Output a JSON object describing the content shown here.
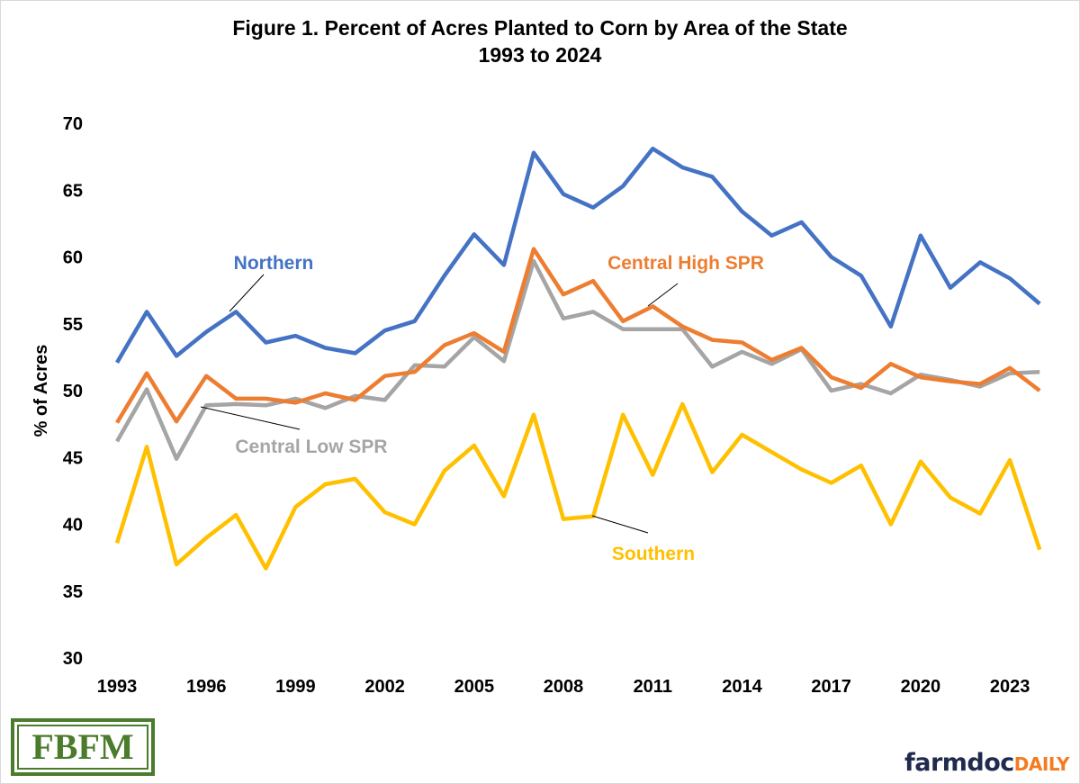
{
  "chart_data": {
    "type": "line",
    "title": "Figure  1. Percent of Acres Planted to Corn by Area of the State",
    "subtitle": "1993 to 2024",
    "xlabel": "",
    "ylabel": "% of Acres",
    "ylim": [
      30,
      70
    ],
    "yticks": [
      30,
      35,
      40,
      45,
      50,
      55,
      60,
      65,
      70
    ],
    "xticks": [
      1993,
      1996,
      1999,
      2002,
      2005,
      2008,
      2011,
      2014,
      2017,
      2020,
      2023
    ],
    "grid": false,
    "x": [
      1993,
      1994,
      1995,
      1996,
      1997,
      1998,
      1999,
      2000,
      2001,
      2002,
      2003,
      2004,
      2005,
      2006,
      2007,
      2008,
      2009,
      2010,
      2011,
      2012,
      2013,
      2014,
      2015,
      2016,
      2017,
      2018,
      2019,
      2020,
      2021,
      2022,
      2023,
      2024
    ],
    "series": [
      {
        "name": "Northern",
        "color": "#4472c4",
        "values": [
          52.1,
          55.9,
          52.6,
          54.4,
          55.9,
          53.6,
          54.1,
          53.2,
          52.8,
          54.5,
          55.2,
          58.6,
          61.7,
          59.4,
          67.8,
          64.7,
          63.7,
          65.3,
          68.1,
          66.7,
          66.0,
          63.4,
          61.6,
          62.6,
          60.0,
          58.6,
          54.8,
          61.6,
          57.7,
          59.6,
          58.4,
          56.5
        ]
      },
      {
        "name": "Central High SPR",
        "color": "#ed7d31",
        "values": [
          47.6,
          51.3,
          47.7,
          51.1,
          49.4,
          49.4,
          49.1,
          49.8,
          49.3,
          51.1,
          51.4,
          53.4,
          54.3,
          52.9,
          60.6,
          57.2,
          58.2,
          55.2,
          56.3,
          54.8,
          53.8,
          53.6,
          52.3,
          53.2,
          51.0,
          50.2,
          52.0,
          51.0,
          50.7,
          50.5,
          51.7,
          50.0
        ]
      },
      {
        "name": "Central Low SPR",
        "color": "#a5a5a5",
        "values": [
          46.2,
          50.1,
          44.9,
          48.9,
          49.0,
          48.9,
          49.4,
          48.7,
          49.6,
          49.3,
          51.9,
          51.8,
          54.0,
          52.2,
          59.7,
          55.4,
          55.9,
          54.6,
          54.6,
          54.6,
          51.8,
          52.9,
          52.0,
          53.1,
          50.0,
          50.5,
          49.8,
          51.2,
          50.8,
          50.3,
          51.3,
          51.4
        ]
      },
      {
        "name": "Southern",
        "color": "#ffc000",
        "values": [
          38.6,
          45.8,
          37.0,
          39.0,
          40.7,
          36.7,
          41.3,
          43.0,
          43.4,
          40.9,
          40.0,
          44.0,
          45.9,
          42.1,
          48.2,
          40.4,
          40.6,
          48.2,
          43.7,
          49.0,
          43.9,
          46.7,
          45.4,
          44.1,
          43.1,
          44.4,
          40.0,
          44.7,
          42.0,
          40.8,
          44.8,
          38.1
        ]
      }
    ]
  },
  "logos": {
    "left": "FBFM",
    "right_main": "farmdoc",
    "right_accent": "DAILY"
  }
}
